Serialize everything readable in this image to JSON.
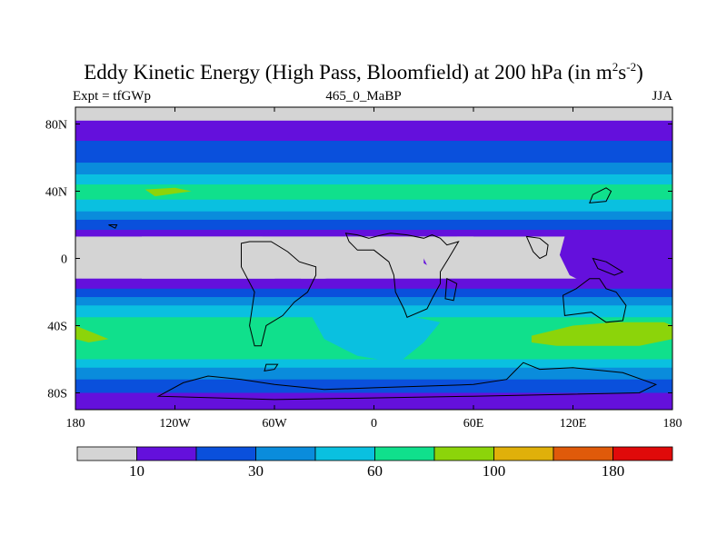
{
  "title": {
    "main": "Eddy Kinetic Energy (High Pass, Bloomfield) at 200 hPa (in m",
    "sup1": "2",
    "mid": "s",
    "sup2": "-2",
    "end": ")"
  },
  "subtitle": {
    "left": "Expt = tfGWp",
    "center": "465_0_MaBP",
    "right": "JJA"
  },
  "chart_data": {
    "type": "heatmap",
    "projection": "cylindrical equidistant",
    "x_range": [
      -180,
      180
    ],
    "y_range": [
      -90,
      90
    ],
    "x_ticks": [
      {
        "value": -180,
        "label": "180"
      },
      {
        "value": -120,
        "label": "120W"
      },
      {
        "value": -60,
        "label": "60W"
      },
      {
        "value": 0,
        "label": "0"
      },
      {
        "value": 60,
        "label": "60E"
      },
      {
        "value": 120,
        "label": "120E"
      },
      {
        "value": 180,
        "label": "180"
      }
    ],
    "y_ticks": [
      {
        "value": 80,
        "label": "80N"
      },
      {
        "value": 40,
        "label": "40N"
      },
      {
        "value": 0,
        "label": "0"
      },
      {
        "value": -40,
        "label": "40S"
      },
      {
        "value": -80,
        "label": "80S"
      }
    ],
    "contour_levels": [
      10,
      20,
      30,
      45,
      60,
      80,
      100,
      130,
      180
    ],
    "colors": [
      "#d4d4d4",
      "#6410dc",
      "#0a50dc",
      "#0a8cdc",
      "#0ac0e0",
      "#10e08c",
      "#8cd40a",
      "#e0b00a",
      "#e05a0a",
      "#e00a0a"
    ],
    "colorbar_labels": [
      {
        "index": 1,
        "label": "10"
      },
      {
        "index": 3,
        "label": "30"
      },
      {
        "index": 5,
        "label": "60"
      },
      {
        "index": 7,
        "label": "100"
      },
      {
        "index": 9,
        "label": "180"
      }
    ],
    "zonal_bands": [
      {
        "lat_top": 90,
        "lat_bottom": 82,
        "class": 0
      },
      {
        "lat_top": 82,
        "lat_bottom": 70,
        "class": 1
      },
      {
        "lat_top": 70,
        "lat_bottom": 57,
        "class": 2
      },
      {
        "lat_top": 57,
        "lat_bottom": 50,
        "class": 3
      },
      {
        "lat_top": 50,
        "lat_bottom": 44,
        "class": 4
      },
      {
        "lat_top": 44,
        "lat_bottom": 35,
        "class": 5
      },
      {
        "lat_top": 35,
        "lat_bottom": 28,
        "class": 4
      },
      {
        "lat_top": 28,
        "lat_bottom": 23,
        "class": 3
      },
      {
        "lat_top": 23,
        "lat_bottom": 17,
        "class": 2
      },
      {
        "lat_top": 17,
        "lat_bottom": 13,
        "class": 1
      },
      {
        "lat_top": 13,
        "lat_bottom": -12,
        "class": 0
      },
      {
        "lat_top": -12,
        "lat_bottom": -18,
        "class": 1
      },
      {
        "lat_top": -18,
        "lat_bottom": -23,
        "class": 2
      },
      {
        "lat_top": -23,
        "lat_bottom": -28,
        "class": 3
      },
      {
        "lat_top": -28,
        "lat_bottom": -35,
        "class": 4
      },
      {
        "lat_top": -35,
        "lat_bottom": -60,
        "class": 5
      },
      {
        "lat_top": -60,
        "lat_bottom": -65,
        "class": 4
      },
      {
        "lat_top": -65,
        "lat_bottom": -72,
        "class": 3
      },
      {
        "lat_top": -72,
        "lat_bottom": -80,
        "class": 2
      },
      {
        "lat_top": -80,
        "lat_bottom": -90,
        "class": 1
      }
    ],
    "regions": [
      {
        "name": "tropical-east-pacific-min",
        "class": 1,
        "points": [
          [
            180,
            17
          ],
          [
            128,
            17
          ],
          [
            115,
            13
          ],
          [
            112,
            2
          ],
          [
            118,
            -10
          ],
          [
            130,
            -16
          ],
          [
            180,
            -16
          ]
        ]
      },
      {
        "name": "tropical-atlantic-indian-min",
        "class": 1,
        "points": [
          [
            -30,
            -18
          ],
          [
            -60,
            -12
          ],
          [
            -55,
            -4
          ],
          [
            8,
            -4
          ],
          [
            25,
            0
          ],
          [
            32,
            -4
          ],
          [
            28,
            4
          ],
          [
            50,
            13
          ],
          [
            60,
            17
          ],
          [
            -15,
            17
          ],
          [
            -28,
            17
          ],
          [
            -40,
            17
          ],
          [
            -60,
            17
          ],
          [
            -68,
            14
          ],
          [
            -58,
            -2
          ],
          [
            -40,
            -15
          ]
        ]
      },
      {
        "name": "atlantic-grey-low",
        "class": 0,
        "points": [
          [
            -140,
            13
          ],
          [
            60,
            13
          ],
          [
            58,
            6
          ],
          [
            45,
            4
          ],
          [
            30,
            2
          ],
          [
            30,
            -4
          ],
          [
            40,
            -8
          ],
          [
            20,
            -8
          ],
          [
            -30,
            -12
          ],
          [
            -70,
            -12
          ],
          [
            -140,
            -12
          ]
        ]
      },
      {
        "name": "north-pacific-jet",
        "class": 6,
        "points": [
          [
            -132,
            37
          ],
          [
            -110,
            40
          ],
          [
            -120,
            42
          ],
          [
            -138,
            41
          ]
        ]
      },
      {
        "name": "south-pacific-jet",
        "class": 6,
        "points": [
          [
            -180,
            -40
          ],
          [
            -170,
            -44
          ],
          [
            -160,
            -48
          ],
          [
            -172,
            -50
          ],
          [
            -180,
            -48
          ]
        ]
      },
      {
        "name": "indian-ocean-jet",
        "class": 6,
        "points": [
          [
            95,
            -46
          ],
          [
            120,
            -40
          ],
          [
            145,
            -38
          ],
          [
            175,
            -38
          ],
          [
            180,
            -40
          ],
          [
            180,
            -48
          ],
          [
            160,
            -52
          ],
          [
            135,
            -52
          ],
          [
            110,
            -52
          ],
          [
            95,
            -50
          ]
        ]
      },
      {
        "name": "south-atlantic-weak",
        "class": 4,
        "points": [
          [
            -40,
            -30
          ],
          [
            10,
            -32
          ],
          [
            40,
            -38
          ],
          [
            30,
            -50
          ],
          [
            15,
            -62
          ],
          [
            -10,
            -58
          ],
          [
            -30,
            -48
          ]
        ]
      }
    ],
    "coastlines": [
      {
        "name": "africa",
        "points": [
          [
            -3,
            12
          ],
          [
            5,
            14
          ],
          [
            10,
            15
          ],
          [
            20,
            14
          ],
          [
            30,
            12
          ],
          [
            35,
            14
          ],
          [
            40,
            12
          ],
          [
            44,
            8
          ],
          [
            51,
            10
          ],
          [
            45,
            0
          ],
          [
            40,
            -8
          ],
          [
            40,
            -15
          ],
          [
            35,
            -24
          ],
          [
            32,
            -30
          ],
          [
            20,
            -35
          ],
          [
            18,
            -30
          ],
          [
            13,
            -20
          ],
          [
            12,
            -10
          ],
          [
            9,
            -2
          ],
          [
            0,
            5
          ],
          [
            -10,
            5
          ],
          [
            -15,
            10
          ],
          [
            -17,
            15
          ],
          [
            -10,
            14
          ]
        ]
      },
      {
        "name": "south-america",
        "points": [
          [
            -80,
            9
          ],
          [
            -75,
            10
          ],
          [
            -62,
            10
          ],
          [
            -52,
            4
          ],
          [
            -45,
            -2
          ],
          [
            -35,
            -5
          ],
          [
            -35,
            -10
          ],
          [
            -40,
            -20
          ],
          [
            -48,
            -26
          ],
          [
            -55,
            -34
          ],
          [
            -65,
            -40
          ],
          [
            -68,
            -52
          ],
          [
            -72,
            -52
          ],
          [
            -75,
            -40
          ],
          [
            -72,
            -20
          ],
          [
            -80,
            -5
          ]
        ]
      },
      {
        "name": "australia",
        "points": [
          [
            114,
            -22
          ],
          [
            122,
            -18
          ],
          [
            130,
            -12
          ],
          [
            136,
            -12
          ],
          [
            140,
            -18
          ],
          [
            146,
            -20
          ],
          [
            152,
            -28
          ],
          [
            150,
            -37
          ],
          [
            140,
            -38
          ],
          [
            131,
            -32
          ],
          [
            115,
            -34
          ]
        ]
      },
      {
        "name": "antarctica",
        "points": [
          [
            -130,
            -82
          ],
          [
            -115,
            -74
          ],
          [
            -100,
            -70
          ],
          [
            -80,
            -72
          ],
          [
            -60,
            -75
          ],
          [
            -30,
            -78
          ],
          [
            0,
            -77
          ],
          [
            30,
            -76
          ],
          [
            60,
            -75
          ],
          [
            80,
            -72
          ],
          [
            85,
            -67
          ],
          [
            90,
            -62
          ],
          [
            100,
            -66
          ],
          [
            120,
            -65
          ],
          [
            150,
            -68
          ],
          [
            170,
            -75
          ],
          [
            160,
            -80
          ],
          [
            60,
            -82
          ],
          [
            -60,
            -84
          ]
        ]
      },
      {
        "name": "antarctic-peninsula",
        "points": [
          [
            -65,
            -63
          ],
          [
            -58,
            -63
          ],
          [
            -60,
            -66
          ],
          [
            -66,
            -67
          ]
        ]
      },
      {
        "name": "japan",
        "points": [
          [
            130,
            33
          ],
          [
            140,
            34
          ],
          [
            143,
            40
          ],
          [
            140,
            42
          ],
          [
            132,
            38
          ]
        ]
      },
      {
        "name": "indochina-arc",
        "points": [
          [
            92,
            13
          ],
          [
            100,
            12
          ],
          [
            105,
            8
          ],
          [
            104,
            2
          ],
          [
            100,
            0
          ],
          [
            96,
            4
          ]
        ]
      },
      {
        "name": "new-guinea",
        "points": [
          [
            132,
            0
          ],
          [
            140,
            -2
          ],
          [
            150,
            -8
          ],
          [
            145,
            -10
          ],
          [
            135,
            -6
          ]
        ]
      },
      {
        "name": "madagascar",
        "points": [
          [
            44,
            -12
          ],
          [
            50,
            -15
          ],
          [
            48,
            -25
          ],
          [
            43,
            -24
          ]
        ]
      },
      {
        "name": "pacific-islands",
        "points": [
          [
            -160,
            20
          ],
          [
            -155,
            20
          ],
          [
            -156,
            18
          ]
        ]
      }
    ]
  }
}
